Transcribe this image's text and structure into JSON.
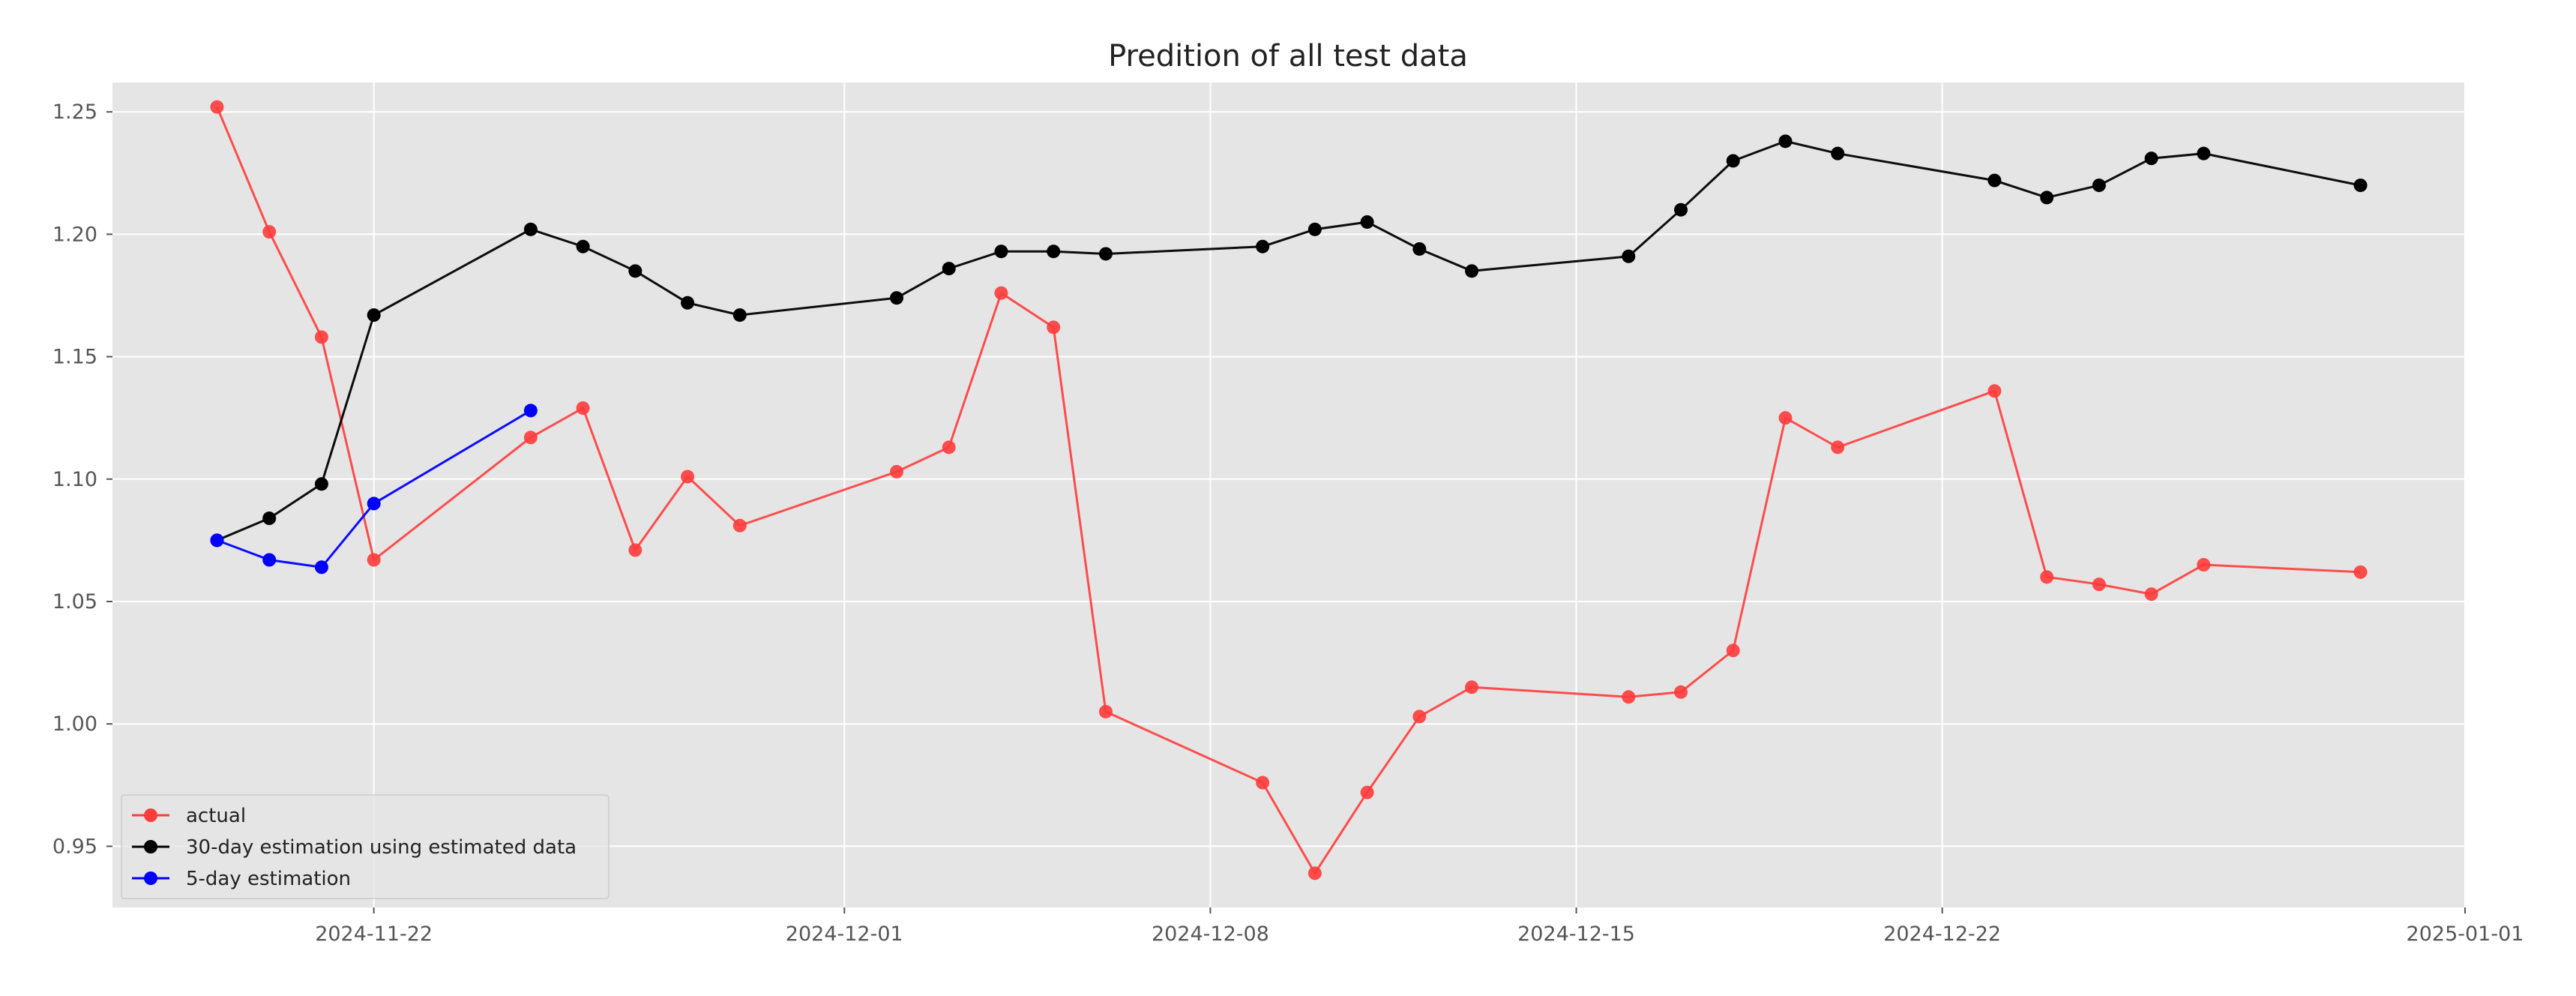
{
  "chart_data": {
    "type": "line",
    "title": "Predition of all test data",
    "xlabel": "",
    "ylabel": "",
    "x_axis_type": "date",
    "xlim": [
      "2024-11-17",
      "2025-01-01"
    ],
    "ylim": [
      0.925,
      1.262
    ],
    "x_ticks": [
      "2024-11-22",
      "2024-12-01",
      "2024-12-08",
      "2024-12-15",
      "2024-12-22",
      "2025-01-01"
    ],
    "y_ticks": [
      "0.95",
      "1.00",
      "1.05",
      "1.10",
      "1.15",
      "1.20",
      "1.25"
    ],
    "grid": true,
    "background": "#e5e5e5",
    "legend_position": "lower-left",
    "series": [
      {
        "name": "actual",
        "color": "#ff3b3b",
        "marker": "circle",
        "points": [
          {
            "x": "2024-11-19",
            "y": 1.252
          },
          {
            "x": "2024-11-20",
            "y": 1.201
          },
          {
            "x": "2024-11-21",
            "y": 1.158
          },
          {
            "x": "2024-11-22",
            "y": 1.067
          },
          {
            "x": "2024-11-25",
            "y": 1.117
          },
          {
            "x": "2024-11-26",
            "y": 1.129
          },
          {
            "x": "2024-11-27",
            "y": 1.071
          },
          {
            "x": "2024-11-28",
            "y": 1.101
          },
          {
            "x": "2024-11-29",
            "y": 1.081
          },
          {
            "x": "2024-12-02",
            "y": 1.103
          },
          {
            "x": "2024-12-03",
            "y": 1.113
          },
          {
            "x": "2024-12-04",
            "y": 1.176
          },
          {
            "x": "2024-12-05",
            "y": 1.162
          },
          {
            "x": "2024-12-06",
            "y": 1.005
          },
          {
            "x": "2024-12-09",
            "y": 0.976
          },
          {
            "x": "2024-12-10",
            "y": 0.939
          },
          {
            "x": "2024-12-11",
            "y": 0.972
          },
          {
            "x": "2024-12-12",
            "y": 1.003
          },
          {
            "x": "2024-12-13",
            "y": 1.015
          },
          {
            "x": "2024-12-16",
            "y": 1.011
          },
          {
            "x": "2024-12-17",
            "y": 1.013
          },
          {
            "x": "2024-12-18",
            "y": 1.03
          },
          {
            "x": "2024-12-19",
            "y": 1.125
          },
          {
            "x": "2024-12-20",
            "y": 1.113
          },
          {
            "x": "2024-12-23",
            "y": 1.136
          },
          {
            "x": "2024-12-24",
            "y": 1.06
          },
          {
            "x": "2024-12-25",
            "y": 1.057
          },
          {
            "x": "2024-12-26",
            "y": 1.053
          },
          {
            "x": "2024-12-27",
            "y": 1.065
          },
          {
            "x": "2024-12-30",
            "y": 1.062
          }
        ]
      },
      {
        "name": "30-day estimation using estimated data",
        "color": "#000000",
        "marker": "circle",
        "points": [
          {
            "x": "2024-11-19",
            "y": 1.075
          },
          {
            "x": "2024-11-20",
            "y": 1.084
          },
          {
            "x": "2024-11-21",
            "y": 1.098
          },
          {
            "x": "2024-11-22",
            "y": 1.167
          },
          {
            "x": "2024-11-25",
            "y": 1.202
          },
          {
            "x": "2024-11-26",
            "y": 1.195
          },
          {
            "x": "2024-11-27",
            "y": 1.185
          },
          {
            "x": "2024-11-28",
            "y": 1.172
          },
          {
            "x": "2024-11-29",
            "y": 1.167
          },
          {
            "x": "2024-12-02",
            "y": 1.174
          },
          {
            "x": "2024-12-03",
            "y": 1.186
          },
          {
            "x": "2024-12-04",
            "y": 1.193
          },
          {
            "x": "2024-12-05",
            "y": 1.193
          },
          {
            "x": "2024-12-06",
            "y": 1.192
          },
          {
            "x": "2024-12-09",
            "y": 1.195
          },
          {
            "x": "2024-12-10",
            "y": 1.202
          },
          {
            "x": "2024-12-11",
            "y": 1.205
          },
          {
            "x": "2024-12-12",
            "y": 1.194
          },
          {
            "x": "2024-12-13",
            "y": 1.185
          },
          {
            "x": "2024-12-16",
            "y": 1.191
          },
          {
            "x": "2024-12-17",
            "y": 1.21
          },
          {
            "x": "2024-12-18",
            "y": 1.23
          },
          {
            "x": "2024-12-19",
            "y": 1.238
          },
          {
            "x": "2024-12-20",
            "y": 1.233
          },
          {
            "x": "2024-12-23",
            "y": 1.222
          },
          {
            "x": "2024-12-24",
            "y": 1.215
          },
          {
            "x": "2024-12-25",
            "y": 1.22
          },
          {
            "x": "2024-12-26",
            "y": 1.231
          },
          {
            "x": "2024-12-27",
            "y": 1.233
          },
          {
            "x": "2024-12-30",
            "y": 1.22
          }
        ]
      },
      {
        "name": "5-day estimation",
        "color": "#0000ff",
        "marker": "circle",
        "points": [
          {
            "x": "2024-11-19",
            "y": 1.075
          },
          {
            "x": "2024-11-20",
            "y": 1.067
          },
          {
            "x": "2024-11-21",
            "y": 1.064
          },
          {
            "x": "2024-11-22",
            "y": 1.09
          },
          {
            "x": "2024-11-25",
            "y": 1.128
          }
        ]
      }
    ]
  }
}
